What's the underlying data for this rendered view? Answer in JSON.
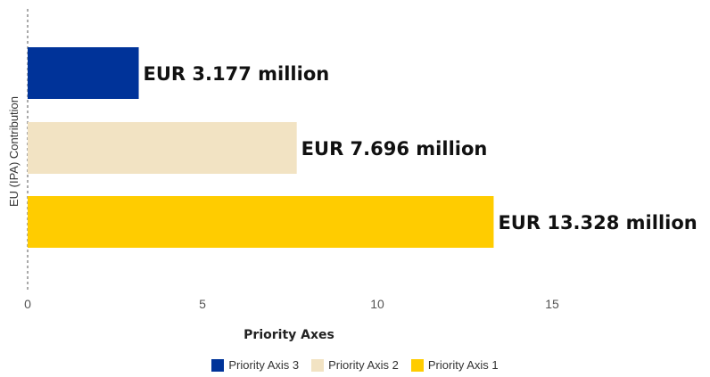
{
  "chart_data": {
    "type": "bar",
    "orientation": "horizontal",
    "categories": [
      "Priority Axis 3",
      "Priority Axis 2",
      "Priority Axis 1"
    ],
    "values": [
      3.177,
      7.696,
      13.328
    ],
    "data_labels": [
      "EUR 3.177 million",
      "EUR 7.696 million",
      "EUR 13.328 million"
    ],
    "colors": [
      "#003399",
      "#f2e3c3",
      "#ffcc00"
    ],
    "xlabel": "Priority Axes",
    "ylabel": "EU (IPA) Contribution",
    "xlim": [
      0,
      19.5
    ],
    "xticks": [
      0,
      5,
      10,
      15
    ],
    "grid": false,
    "legend": {
      "placement": "bottom",
      "items": [
        {
          "label": "Priority Axis 3",
          "color": "#003399"
        },
        {
          "label": "Priority Axis 2",
          "color": "#f2e3c3"
        },
        {
          "label": "Priority Axis 1",
          "color": "#ffcc00"
        }
      ]
    }
  }
}
